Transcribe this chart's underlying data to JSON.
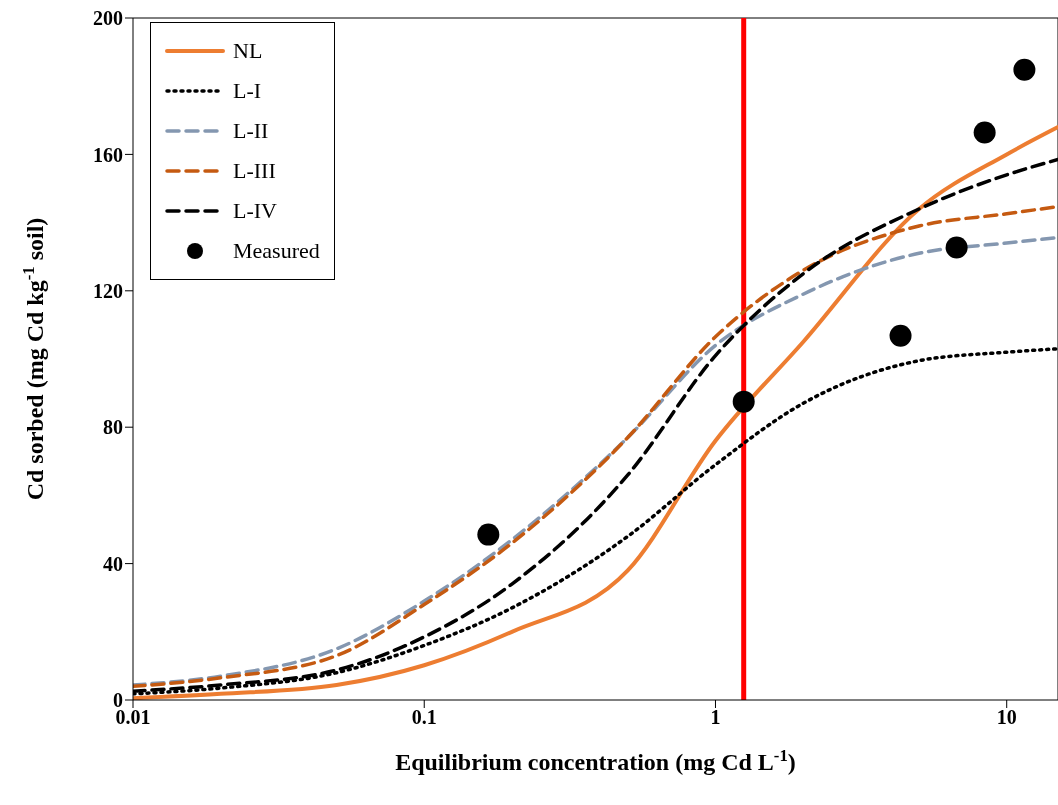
{
  "chart_data": {
    "type": "line",
    "xlabel": "Equilibrium concentration (mg Cd L$^{-1}$)",
    "ylabel": "Cd sorbed (mg Cd kg$^{-1}$ soil)",
    "log": "x",
    "xlim": [
      0.01,
      15
    ],
    "xticks": [
      0.01,
      0.1,
      1,
      10
    ],
    "ylim": [
      0,
      200
    ],
    "yticks": [
      0,
      40,
      80,
      120,
      160,
      200
    ],
    "grid": false,
    "legend": "top left",
    "marker": "none",
    "series": [
      {
        "name": "NL",
        "color": "#ed7d31",
        "line_style": "solid",
        "x": [
          0.01,
          0.02,
          0.05,
          0.1,
          0.2,
          0.5,
          1,
          2,
          5,
          10,
          15
        ],
        "values": [
          0.5,
          1.8,
          4.4,
          10.2,
          20,
          38,
          76,
          105,
          144,
          160,
          168
        ]
      },
      {
        "name": "L-I",
        "color": "#000000",
        "line_style": "dotted",
        "x": [
          0.01,
          0.02,
          0.05,
          0.1,
          0.2,
          0.5,
          1,
          2,
          5,
          10,
          15
        ],
        "values": [
          1.8,
          3.5,
          8,
          16,
          27,
          48,
          69,
          87,
          99.5,
          102,
          103
        ]
      },
      {
        "name": "L-II",
        "color": "#8497b0",
        "line_style": "dashed",
        "x": [
          0.01,
          0.02,
          0.05,
          0.1,
          0.2,
          0.5,
          1,
          2,
          5,
          10,
          15
        ],
        "values": [
          4.4,
          7,
          15,
          29,
          47,
          77,
          104,
          119,
          131,
          134,
          135.6
        ]
      },
      {
        "name": "L-III",
        "color": "#c55a11",
        "line_style": "dashed",
        "x": [
          0.01,
          0.02,
          0.05,
          0.1,
          0.2,
          0.5,
          1,
          2,
          5,
          10,
          15
        ],
        "values": [
          4,
          6.5,
          13,
          28,
          46,
          77,
          106.5,
          126,
          139,
          142.6,
          144.7
        ]
      },
      {
        "name": "L-IV",
        "color": "#000000",
        "line_style": "dashed",
        "x": [
          0.01,
          0.02,
          0.05,
          0.1,
          0.2,
          0.5,
          1,
          2,
          5,
          10,
          15
        ],
        "values": [
          2.6,
          4.4,
          8.8,
          18.5,
          34,
          66,
          101,
          125,
          144,
          154,
          158.5
        ]
      },
      {
        "name": "Measured",
        "type": "scatter",
        "marker": "circle",
        "color": "#000000",
        "x": [
          0.166,
          1.25,
          4.32,
          6.73,
          8.4,
          11.5
        ],
        "values": [
          48.5,
          87.5,
          106.8,
          132.7,
          166.4,
          184.8
        ]
      }
    ],
    "ref_lines": [
      {
        "axis": "x",
        "value": 1.25,
        "color": "#ff0000",
        "line_style": "solid"
      }
    ]
  }
}
